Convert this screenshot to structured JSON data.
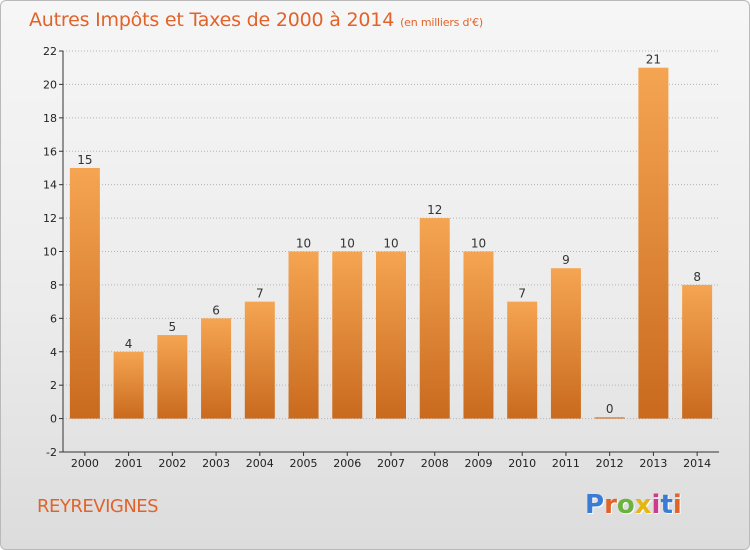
{
  "header": {
    "title": "Autres Impôts et Taxes de 2000 à 2014",
    "unit": "(en milliers d'€)"
  },
  "footer": {
    "town": "REYREVIGNES",
    "brand": "Proxiti",
    "brand_colors": [
      "#3a7bd5",
      "#e2632a",
      "#6cb33e",
      "#e5b612",
      "#d03a8a",
      "#3a7bd5",
      "#e2632a"
    ]
  },
  "colors": {
    "accent": "#e2632a",
    "bar_top": "#f5a552",
    "bar_bottom": "#c96a1e",
    "axis": "#333333",
    "grid": "#b5b5b5"
  },
  "chart_data": {
    "type": "bar",
    "title": "Autres Impôts et Taxes de 2000 à 2014",
    "categories": [
      "2000",
      "2001",
      "2002",
      "2003",
      "2004",
      "2005",
      "2006",
      "2007",
      "2008",
      "2009",
      "2010",
      "2011",
      "2012",
      "2013",
      "2014"
    ],
    "values": [
      15,
      4,
      5,
      6,
      7,
      10,
      10,
      10,
      12,
      10,
      7,
      9,
      0,
      21,
      8
    ],
    "ylim": [
      -2,
      22
    ],
    "yticks": [
      -2,
      0,
      2,
      4,
      6,
      8,
      10,
      12,
      14,
      16,
      18,
      20,
      22
    ],
    "grid": true,
    "data_labels": true
  }
}
